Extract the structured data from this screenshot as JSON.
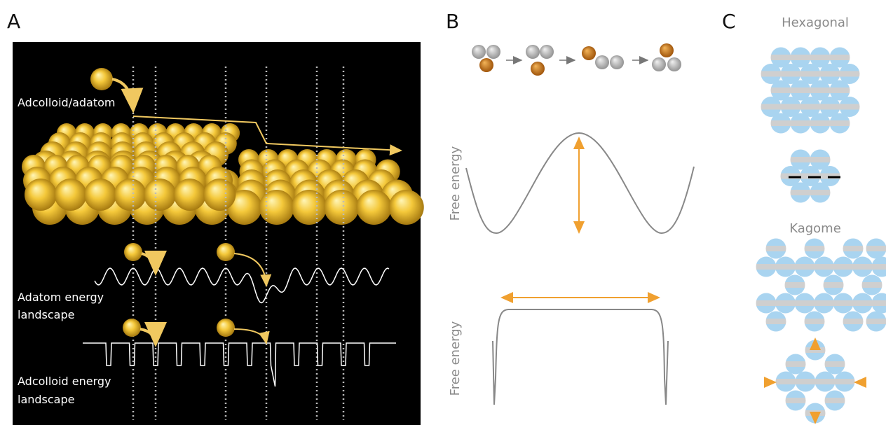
{
  "panels": {
    "a": {
      "label": "A",
      "adcolloid_label": "Adcolloid/adatom",
      "adatom_landscape": [
        "Adatom energy",
        "landscape"
      ],
      "adcolloid_landscape": [
        "Adcolloid energy",
        "landscape"
      ]
    },
    "b": {
      "label": "B",
      "axis_labels": [
        "Free energy",
        "Free energy"
      ]
    },
    "c": {
      "label": "C",
      "lattices": [
        "Hexagonal",
        "Kagome"
      ]
    }
  }
}
